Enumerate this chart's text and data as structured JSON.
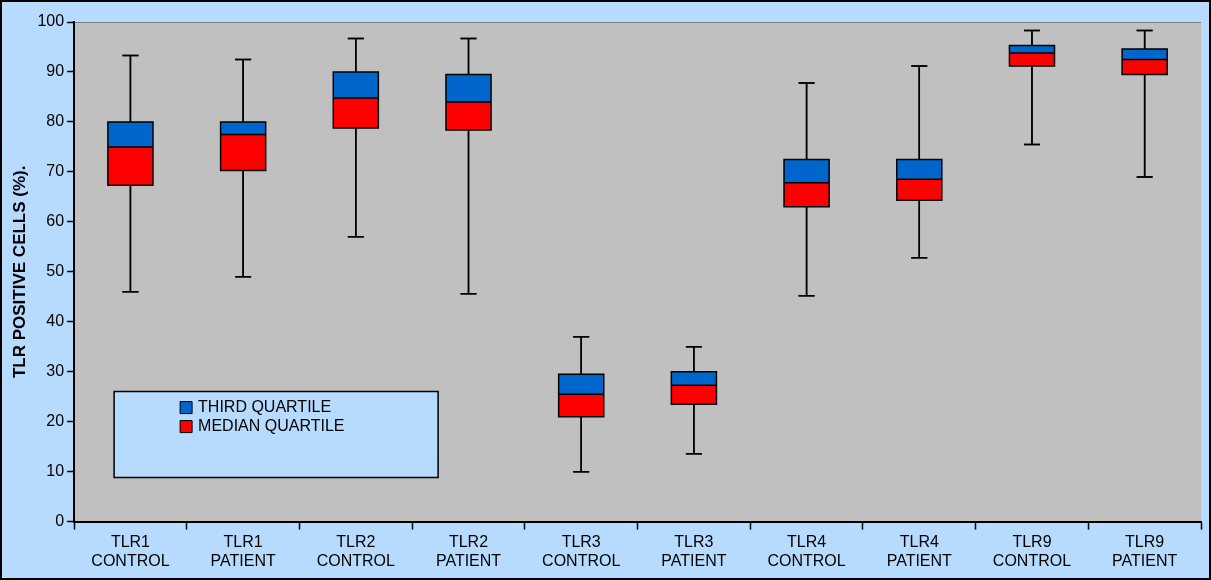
{
  "chart_data": {
    "type": "box",
    "ylabel": "TLR POSITIVE CELLS (%).",
    "categories": [
      "TLR1 CONTROL",
      "TLR1 PATIENT",
      "TLR2 CONTROL",
      "TLR2 PATIENT",
      "TLR3 CONTROL",
      "TLR3 PATIENT",
      "TLR4 CONTROL",
      "TLR4 PATIENT",
      "TLR9 CONTROL",
      "TLR9 PATIENT"
    ],
    "series": [
      {
        "name": "THIRD QUARTILE",
        "color": "#0066cc",
        "boxes": [
          {
            "low": 46,
            "q1": 67.3,
            "median": 75,
            "q3": 80,
            "high": 93.3
          },
          {
            "low": 49,
            "q1": 70.3,
            "median": 77.5,
            "q3": 80,
            "high": 92.5
          },
          {
            "low": 57,
            "q1": 78.8,
            "median": 84.8,
            "q3": 90,
            "high": 96.7
          },
          {
            "low": 45.6,
            "q1": 78.4,
            "median": 84,
            "q3": 89.5,
            "high": 96.7
          },
          {
            "low": 10,
            "q1": 21,
            "median": 25.5,
            "q3": 29.5,
            "high": 37
          },
          {
            "low": 13.6,
            "q1": 23.5,
            "median": 27.3,
            "q3": 30,
            "high": 35
          },
          {
            "low": 45.2,
            "q1": 63,
            "median": 67.8,
            "q3": 72.5,
            "high": 87.8
          },
          {
            "low": 52.8,
            "q1": 64.3,
            "median": 68.5,
            "q3": 72.5,
            "high": 91.2
          },
          {
            "low": 75.5,
            "q1": 91.2,
            "median": 93.8,
            "q3": 95.3,
            "high": 98.3
          },
          {
            "low": 69,
            "q1": 89.5,
            "median": 92.5,
            "q3": 94.6,
            "high": 98.3
          }
        ]
      },
      {
        "name": "MEDIAN QUARTILE",
        "color": "#ff0000",
        "boxes": [
          {
            "low": 46,
            "q1": 67.3,
            "median": 75,
            "q3": 80,
            "high": 93.3
          },
          {
            "low": 49,
            "q1": 70.3,
            "median": 77.5,
            "q3": 80,
            "high": 92.5
          },
          {
            "low": 57,
            "q1": 78.8,
            "median": 84.8,
            "q3": 90,
            "high": 96.7
          },
          {
            "low": 45.6,
            "q1": 78.4,
            "median": 84,
            "q3": 89.5,
            "high": 96.7
          },
          {
            "low": 10,
            "q1": 21,
            "median": 25.5,
            "q3": 29.5,
            "high": 37
          },
          {
            "low": 13.6,
            "q1": 23.5,
            "median": 27.3,
            "q3": 30,
            "high": 35
          },
          {
            "low": 45.2,
            "q1": 63,
            "median": 67.8,
            "q3": 72.5,
            "high": 87.8
          },
          {
            "low": 52.8,
            "q1": 64.3,
            "median": 68.5,
            "q3": 72.5,
            "high": 91.2
          },
          {
            "low": 75.5,
            "q1": 91.2,
            "median": 93.8,
            "q3": 95.3,
            "high": 98.3
          },
          {
            "low": 69,
            "q1": 89.5,
            "median": 92.5,
            "q3": 94.6,
            "high": 98.3
          }
        ]
      }
    ],
    "ylim": [
      0,
      100
    ],
    "yticks": [
      0,
      10,
      20,
      30,
      40,
      50,
      60,
      70,
      80,
      90,
      100
    ],
    "grid": false,
    "legend": "bottom left"
  }
}
